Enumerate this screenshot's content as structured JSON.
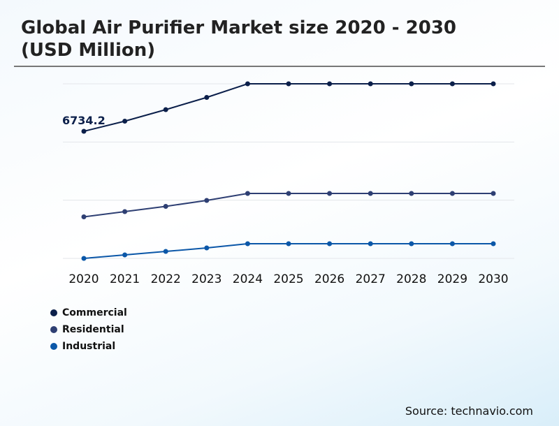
{
  "chart_data": {
    "type": "line",
    "title": "Global Air Purifier Market size 2020 - 2030 (USD Million)",
    "x": [
      "2020",
      "2021",
      "2022",
      "2023",
      "2024",
      "2025",
      "2026",
      "2027",
      "2028",
      "2029",
      "2030"
    ],
    "ylim": [
      0,
      9250
    ],
    "grid": true,
    "legend": "bottom-left",
    "series": [
      {
        "name": "Commercial",
        "color": "#0b1f4a",
        "values": [
          6734.2,
          7270,
          7881,
          8529,
          9250,
          9250,
          9250,
          9250,
          9250,
          9250,
          9250
        ]
      },
      {
        "name": "Residential",
        "color": "#2e3f73",
        "values": [
          2202,
          2479,
          2757,
          3071,
          3441,
          3441,
          3441,
          3441,
          3441,
          3441,
          3441
        ]
      },
      {
        "name": "Industrial",
        "color": "#0b57a8",
        "values": [
          0,
          185,
          370,
          555,
          777,
          777,
          777,
          777,
          777,
          777,
          777
        ]
      }
    ],
    "annotations": [
      {
        "series": "Commercial",
        "x": "2020",
        "text": "6734.2"
      }
    ]
  },
  "source": "Source: technavio.com"
}
